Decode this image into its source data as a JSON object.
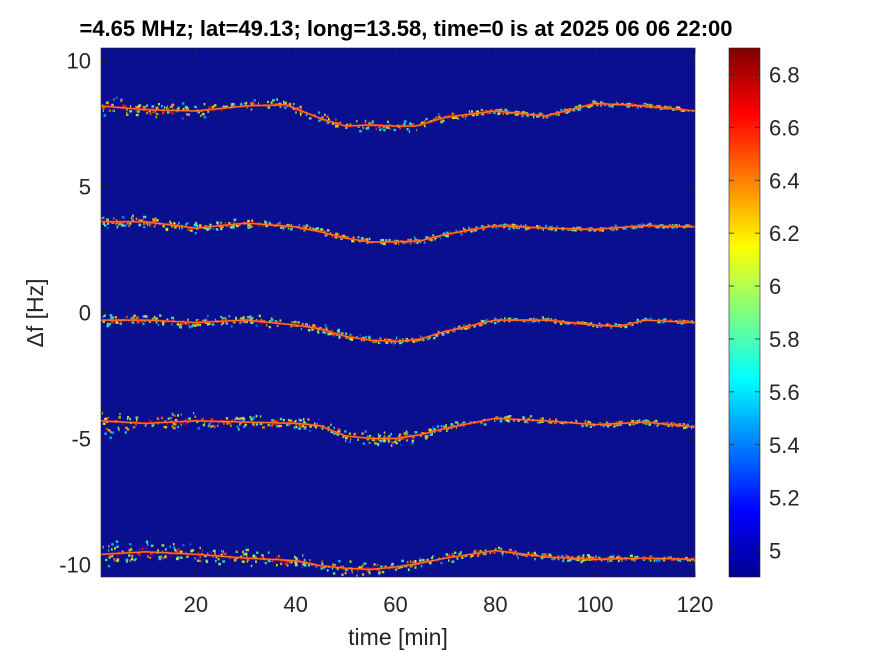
{
  "chart_data": {
    "type": "heatmap",
    "title": "=4.65 MHz;  lat=49.13; long=13.58, time=0 is at 2025 06 06 22:00",
    "xlabel": "time [min]",
    "ylabel": "Δf [Hz]",
    "xlim": [
      1,
      120
    ],
    "ylim": [
      -10.5,
      10.5
    ],
    "x_ticks": [
      20,
      40,
      60,
      80,
      100,
      120
    ],
    "y_ticks": [
      10,
      5,
      0,
      -5,
      -10
    ],
    "colorbar": {
      "colormap": "jet",
      "range": [
        4.9,
        6.9
      ],
      "ticks": [
        6.8,
        6.6,
        6.4,
        6.2,
        6,
        5.8,
        5.6,
        5.4,
        5.2,
        5
      ],
      "tick_labels": [
        "6.8",
        "6.6",
        "6.4",
        "6.2",
        "6",
        "5.8",
        "5.6",
        "5.4",
        "5.2",
        "5"
      ]
    },
    "background_color": "#0a0f90",
    "series": [
      {
        "baseline_hz": 8,
        "trace": [
          [
            1,
            8.2
          ],
          [
            10,
            8.05
          ],
          [
            20,
            8.0
          ],
          [
            30,
            8.2
          ],
          [
            38,
            8.25
          ],
          [
            45,
            7.7
          ],
          [
            50,
            7.4
          ],
          [
            55,
            7.45
          ],
          [
            60,
            7.4
          ],
          [
            64,
            7.4
          ],
          [
            70,
            7.75
          ],
          [
            80,
            8.0
          ],
          [
            90,
            7.8
          ],
          [
            100,
            8.3
          ],
          [
            110,
            8.2
          ],
          [
            120,
            8.0
          ]
        ],
        "spread_hz": [
          [
            1,
            0.55
          ],
          [
            20,
            0.4
          ],
          [
            40,
            0.25
          ],
          [
            60,
            0.35
          ],
          [
            80,
            0.15
          ],
          [
            120,
            0.1
          ]
        ]
      },
      {
        "baseline_hz": 3.5,
        "trace": [
          [
            1,
            3.6
          ],
          [
            10,
            3.6
          ],
          [
            20,
            3.35
          ],
          [
            30,
            3.55
          ],
          [
            40,
            3.4
          ],
          [
            45,
            3.2
          ],
          [
            50,
            2.95
          ],
          [
            55,
            2.8
          ],
          [
            60,
            2.8
          ],
          [
            65,
            2.85
          ],
          [
            70,
            3.1
          ],
          [
            80,
            3.45
          ],
          [
            90,
            3.35
          ],
          [
            100,
            3.3
          ],
          [
            110,
            3.45
          ],
          [
            120,
            3.4
          ]
        ],
        "spread_hz": [
          [
            1,
            0.35
          ],
          [
            40,
            0.2
          ],
          [
            80,
            0.12
          ],
          [
            120,
            0.1
          ]
        ]
      },
      {
        "baseline_hz": -0.3,
        "trace": [
          [
            1,
            -0.3
          ],
          [
            10,
            -0.3
          ],
          [
            20,
            -0.4
          ],
          [
            30,
            -0.3
          ],
          [
            40,
            -0.5
          ],
          [
            45,
            -0.65
          ],
          [
            50,
            -0.95
          ],
          [
            55,
            -1.1
          ],
          [
            60,
            -1.15
          ],
          [
            65,
            -1.05
          ],
          [
            70,
            -0.75
          ],
          [
            80,
            -0.3
          ],
          [
            90,
            -0.3
          ],
          [
            100,
            -0.5
          ],
          [
            105,
            -0.55
          ],
          [
            110,
            -0.3
          ],
          [
            120,
            -0.4
          ]
        ],
        "spread_hz": [
          [
            1,
            0.35
          ],
          [
            40,
            0.25
          ],
          [
            80,
            0.12
          ],
          [
            120,
            0.1
          ]
        ]
      },
      {
        "baseline_hz": -4.4,
        "trace": [
          [
            1,
            -4.3
          ],
          [
            10,
            -4.4
          ],
          [
            20,
            -4.3
          ],
          [
            30,
            -4.35
          ],
          [
            40,
            -4.4
          ],
          [
            45,
            -4.5
          ],
          [
            50,
            -4.9
          ],
          [
            55,
            -5.0
          ],
          [
            60,
            -5.0
          ],
          [
            65,
            -4.85
          ],
          [
            70,
            -4.6
          ],
          [
            80,
            -4.2
          ],
          [
            90,
            -4.3
          ],
          [
            100,
            -4.45
          ],
          [
            110,
            -4.35
          ],
          [
            120,
            -4.55
          ]
        ],
        "spread_hz": [
          [
            1,
            0.8
          ],
          [
            20,
            0.5
          ],
          [
            40,
            0.3
          ],
          [
            60,
            0.35
          ],
          [
            80,
            0.2
          ],
          [
            120,
            0.12
          ]
        ]
      },
      {
        "baseline_hz": -9.7,
        "trace": [
          [
            1,
            -9.6
          ],
          [
            10,
            -9.5
          ],
          [
            20,
            -9.6
          ],
          [
            30,
            -9.75
          ],
          [
            40,
            -9.85
          ],
          [
            45,
            -10.05
          ],
          [
            50,
            -10.15
          ],
          [
            55,
            -10.2
          ],
          [
            60,
            -10.1
          ],
          [
            65,
            -9.95
          ],
          [
            70,
            -9.75
          ],
          [
            80,
            -9.45
          ],
          [
            90,
            -9.7
          ],
          [
            100,
            -9.8
          ],
          [
            110,
            -9.75
          ],
          [
            120,
            -9.8
          ]
        ],
        "spread_hz": [
          [
            1,
            0.7
          ],
          [
            20,
            0.55
          ],
          [
            40,
            0.35
          ],
          [
            60,
            0.35
          ],
          [
            80,
            0.2
          ],
          [
            120,
            0.15
          ]
        ]
      }
    ]
  }
}
